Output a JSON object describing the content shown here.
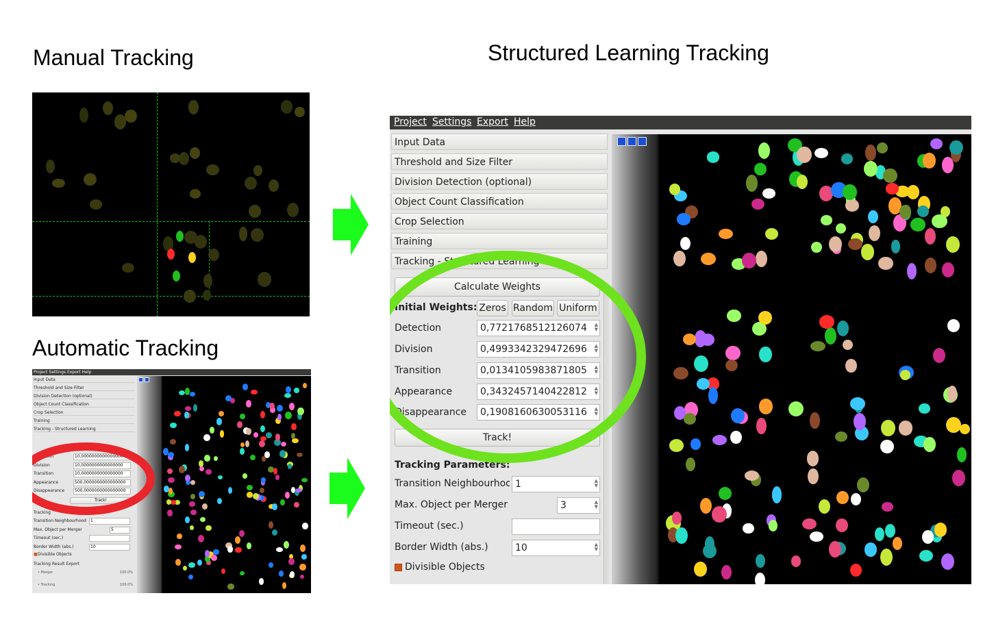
{
  "headings": {
    "manual": "Manual Tracking",
    "automatic": "Automatic Tracking",
    "structured": "Structured Learning Tracking"
  },
  "colors": {
    "arrow": "#1cfc1c",
    "highlight_green": "#6ee21e",
    "highlight_red": "#e8262b",
    "guide_lines": "#14c814"
  },
  "app": {
    "menu": [
      "Project",
      "Settings",
      "Export",
      "Help"
    ],
    "sections": [
      "Input Data",
      "Threshold and Size Filter",
      "Division Detection (optional)",
      "Object Count Classification",
      "Crop Selection",
      "Training",
      "Tracking - Structured Learning"
    ],
    "calculate_weights_label": "Calculate Weights",
    "initial_weights_label": "Initial Weights:",
    "weight_buttons": [
      "Zeros",
      "Random",
      "Uniform"
    ],
    "weights": [
      {
        "label": "Detection",
        "value": "0,7721768512126074"
      },
      {
        "label": "Division",
        "value": "0,4993342329472696"
      },
      {
        "label": "Transition",
        "value": "0,0134105983871805"
      },
      {
        "label": "Appearance",
        "value": "0,3432457140422812"
      },
      {
        "label": "Disappearance",
        "value": "0,1908160630053116"
      }
    ],
    "track_label": "Track!",
    "tracking_parameters_label": "Tracking Parameters:",
    "params": [
      {
        "label": "Transition Neighbourhood",
        "value": "1"
      },
      {
        "label": "Max. Object per Merger",
        "value": "3"
      },
      {
        "label": "Timeout (sec.)",
        "value": ""
      },
      {
        "label": "Border Width (abs.)",
        "value": "10"
      }
    ],
    "divisible_objects_label": "Divisible Objects",
    "divisible_objects_checked": true,
    "toolbar_icons": [
      "undo-icon",
      "stop-icon",
      "redo-icon"
    ]
  },
  "small_app": {
    "menu": "Project  Settings  Export  Help",
    "sections": [
      "Input Data",
      "Threshold and Size Filter",
      "Division Detection (optional)",
      "Object Count Classification",
      "Crop Selection",
      "Training",
      "Tracking - Structured Learning"
    ],
    "weight_buttons": [
      "Zeros",
      "Random"
    ],
    "weights": [
      {
        "label": "Detection",
        "value": "10,0000000000000000"
      },
      {
        "label": "Division",
        "value": "10,0000000000000000"
      },
      {
        "label": "Transition",
        "value": "10,0000000000000000"
      },
      {
        "label": "Appearance",
        "value": "500,0000000000000000"
      },
      {
        "label": "Disappearance",
        "value": "500,0000000000000000"
      }
    ],
    "track_label": "Track!",
    "tracking_label": "Tracking",
    "params": [
      {
        "label": "Transition Neighbourhood",
        "value": "1"
      },
      {
        "label": "Max. Object per Merger",
        "value": "5"
      },
      {
        "label": "Timeout (sec.)",
        "value": ""
      },
      {
        "label": "Border Width (abs.)",
        "value": "10"
      }
    ],
    "divisible_objects_label": "Divisible Objects",
    "export_label": "Tracking Result Export",
    "merger_label": "Merger",
    "merger_zoom": "100.0%",
    "tracking_label2": "Tracking",
    "tracking_zoom": "100.0%"
  }
}
